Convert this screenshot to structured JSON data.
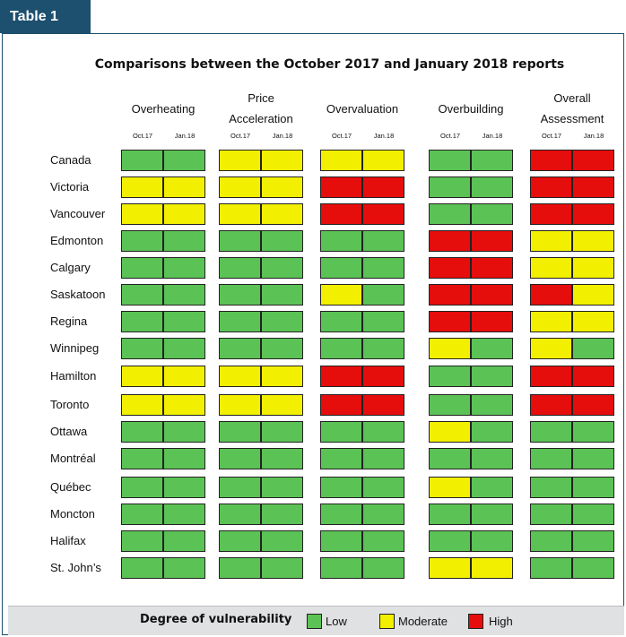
{
  "tab_label": "Table 1",
  "title": "Comparisons between the October 2017 and January 2018 reports",
  "colors": {
    "Low": "#5bc255",
    "Moderate": "#f2ef00",
    "High": "#e60d0d"
  },
  "categories": [
    {
      "line1": "",
      "line2": "Overheating"
    },
    {
      "line1": "Price",
      "line2": "Acceleration"
    },
    {
      "line1": "",
      "line2": "Overvaluation"
    },
    {
      "line1": "",
      "line2": "Overbuilding"
    },
    {
      "line1": "Overall",
      "line2": "Assessment"
    }
  ],
  "sub_headers": [
    "Oct.17",
    "Jan.18"
  ],
  "rows": [
    {
      "city": "Canada",
      "values": [
        "Low",
        "Low",
        "Moderate",
        "Moderate",
        "Moderate",
        "Moderate",
        "Low",
        "Low",
        "High",
        "High"
      ]
    },
    {
      "city": "Victoria",
      "values": [
        "Moderate",
        "Moderate",
        "Moderate",
        "Moderate",
        "High",
        "High",
        "Low",
        "Low",
        "High",
        "High"
      ]
    },
    {
      "city": "Vancouver",
      "values": [
        "Moderate",
        "Moderate",
        "Moderate",
        "Moderate",
        "High",
        "High",
        "Low",
        "Low",
        "High",
        "High"
      ]
    },
    {
      "city": "Edmonton",
      "values": [
        "Low",
        "Low",
        "Low",
        "Low",
        "Low",
        "Low",
        "High",
        "High",
        "Moderate",
        "Moderate"
      ]
    },
    {
      "city": "Calgary",
      "values": [
        "Low",
        "Low",
        "Low",
        "Low",
        "Low",
        "Low",
        "High",
        "High",
        "Moderate",
        "Moderate"
      ]
    },
    {
      "city": "Saskatoon",
      "values": [
        "Low",
        "Low",
        "Low",
        "Low",
        "Moderate",
        "Low",
        "High",
        "High",
        "High",
        "Moderate"
      ]
    },
    {
      "city": "Regina",
      "values": [
        "Low",
        "Low",
        "Low",
        "Low",
        "Low",
        "Low",
        "High",
        "High",
        "Moderate",
        "Moderate"
      ]
    },
    {
      "city": "Winnipeg",
      "values": [
        "Low",
        "Low",
        "Low",
        "Low",
        "Low",
        "Low",
        "Moderate",
        "Low",
        "Moderate",
        "Low"
      ]
    },
    {
      "city": "Hamilton",
      "values": [
        "Moderate",
        "Moderate",
        "Moderate",
        "Moderate",
        "High",
        "High",
        "Low",
        "Low",
        "High",
        "High"
      ]
    },
    {
      "city": "Toronto",
      "values": [
        "Moderate",
        "Moderate",
        "Moderate",
        "Moderate",
        "High",
        "High",
        "Low",
        "Low",
        "High",
        "High"
      ]
    },
    {
      "city": "Ottawa",
      "values": [
        "Low",
        "Low",
        "Low",
        "Low",
        "Low",
        "Low",
        "Moderate",
        "Low",
        "Low",
        "Low"
      ]
    },
    {
      "city": "Montréal",
      "values": [
        "Low",
        "Low",
        "Low",
        "Low",
        "Low",
        "Low",
        "Low",
        "Low",
        "Low",
        "Low"
      ]
    },
    {
      "city": "Québec",
      "values": [
        "Low",
        "Low",
        "Low",
        "Low",
        "Low",
        "Low",
        "Moderate",
        "Low",
        "Low",
        "Low"
      ]
    },
    {
      "city": "Moncton",
      "values": [
        "Low",
        "Low",
        "Low",
        "Low",
        "Low",
        "Low",
        "Low",
        "Low",
        "Low",
        "Low"
      ]
    },
    {
      "city": "Halifax",
      "values": [
        "Low",
        "Low",
        "Low",
        "Low",
        "Low",
        "Low",
        "Low",
        "Low",
        "Low",
        "Low"
      ]
    },
    {
      "city": "St.  John’s",
      "values": [
        "Low",
        "Low",
        "Low",
        "Low",
        "Low",
        "Low",
        "Moderate",
        "Moderate",
        "Low",
        "Low"
      ]
    }
  ],
  "legend": {
    "title": "Degree of vulnerability",
    "items": [
      {
        "key": "Low",
        "label": "Low"
      },
      {
        "key": "Moderate",
        "label": "Moderate"
      },
      {
        "key": "High",
        "label": "High"
      }
    ]
  }
}
